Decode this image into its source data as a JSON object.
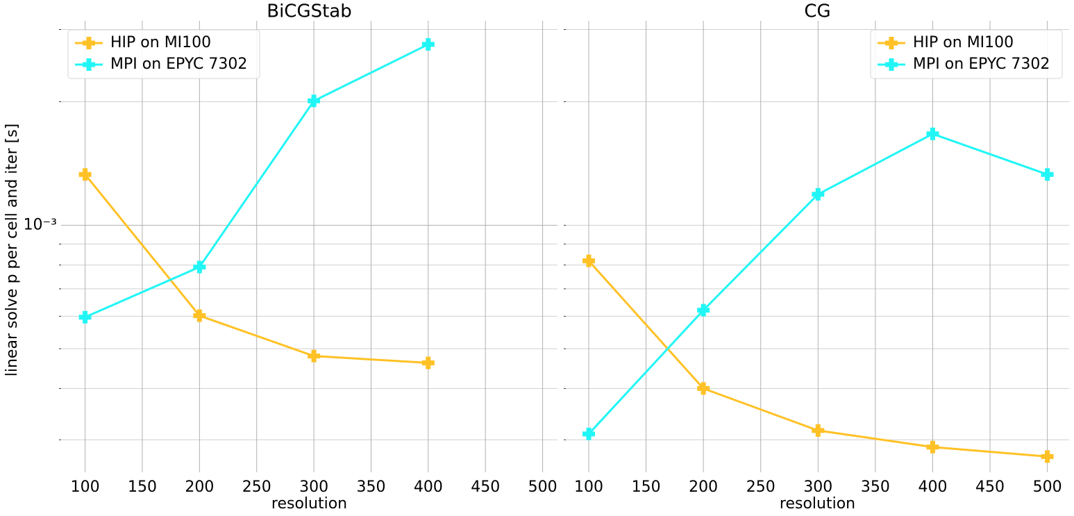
{
  "y_label": "linear solve p per cell and iter [s]",
  "chart_data": [
    {
      "type": "line",
      "title": "BiCGStab",
      "x_label": "resolution",
      "x": [
        100,
        200,
        300,
        400
      ],
      "series": [
        {
          "name": "HIP on MI100",
          "color": "#ffc125",
          "values": [
            0.00133,
            0.000602,
            0.00048,
            0.000462
          ]
        },
        {
          "name": "MPI on EPYC 7302",
          "color": "#22f5f5",
          "values": [
            0.000597,
            0.000791,
            0.00201,
            0.00276
          ]
        }
      ],
      "xlim": [
        79,
        513
      ],
      "xticks": [
        100,
        150,
        200,
        250,
        300,
        350,
        400,
        450,
        500
      ],
      "ylim": [
        0.00025,
        0.00315
      ],
      "y_scale": "log",
      "yticks": [
        {
          "value": 0.001,
          "label": "10⁻³"
        }
      ],
      "yticks_minor": [
        0.0003,
        0.0004,
        0.0005,
        0.0006,
        0.0007,
        0.0008,
        0.0009,
        0.002,
        0.003
      ],
      "grid": true,
      "legend": "upper left"
    },
    {
      "type": "line",
      "title": "CG",
      "x_label": "resolution",
      "x": [
        100,
        200,
        300,
        400,
        500
      ],
      "series": [
        {
          "name": "HIP on MI100",
          "color": "#ffc125",
          "values": [
            0.000819,
            0.0004,
            0.000316,
            0.000288,
            0.000273
          ]
        },
        {
          "name": "MPI on EPYC 7302",
          "color": "#22f5f5",
          "values": [
            0.00031,
            0.000621,
            0.00119,
            0.00167,
            0.00133
          ]
        }
      ],
      "xlim": [
        80,
        519
      ],
      "xticks": [
        100,
        150,
        200,
        250,
        300,
        350,
        400,
        450,
        500
      ],
      "ylim": [
        0.00025,
        0.00315
      ],
      "y_scale": "log",
      "yticks_minor": [
        0.0003,
        0.0004,
        0.0005,
        0.0006,
        0.0007,
        0.0008,
        0.0009,
        0.001,
        0.002,
        0.003
      ],
      "grid": true,
      "legend": "upper right"
    }
  ]
}
